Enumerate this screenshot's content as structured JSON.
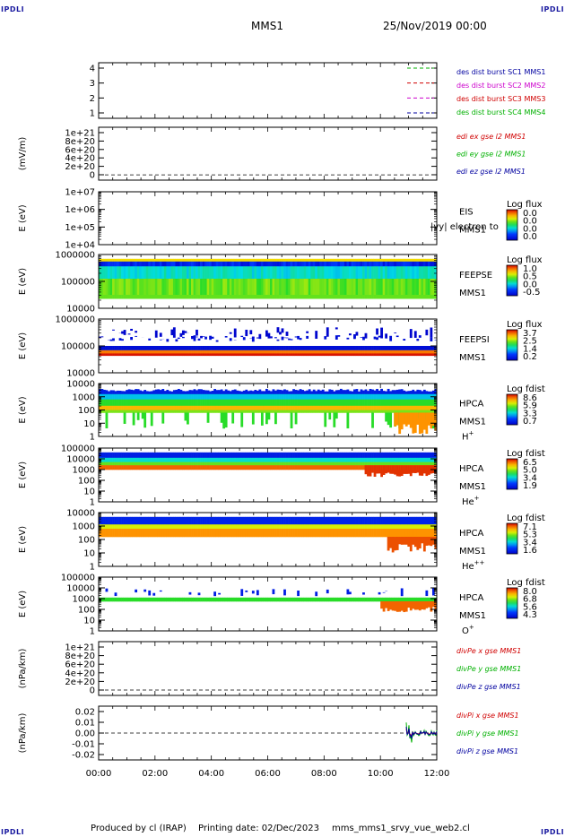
{
  "corner_label": "IPDLI",
  "header": {
    "mission": "MMS1",
    "datetime": "25/Nov/2019 00:00"
  },
  "footer": {
    "produced_by": "Produced by cl (IRAP)",
    "printing_date": "Printing date: 02/Dec/2023",
    "script": "mms_mms1_srvy_vue_web2.cl"
  },
  "time_axis": [
    "00:00",
    "02:00",
    "04:00",
    "06:00",
    "08:00",
    "10:00",
    "12:00"
  ],
  "colors": {
    "mms1": "#0000a0",
    "mms2": "#cc00cc",
    "mms3": "#d00000",
    "mms4": "#00b000",
    "x": "#d00000",
    "y": "#00b000",
    "z": "#0000a0"
  },
  "chart_data": [
    {
      "type": "line",
      "panel": "burst",
      "yticks": [
        "1",
        "2",
        "3",
        "4"
      ],
      "ylim": [
        0.6,
        4.3
      ],
      "series": [
        {
          "name": "des dist burst SC1 MMS1",
          "color": "green",
          "level": 4
        },
        {
          "name": "des dist burst SC2 MMS2",
          "color": "red",
          "level": 3
        },
        {
          "name": "des dist burst SC3 MMS3",
          "color": "magenta",
          "level": 2
        },
        {
          "name": "des dist burst SC4 MMS4",
          "color": "blue",
          "level": 1
        }
      ],
      "legend_colors": [
        "blue",
        "magenta",
        "red",
        "green"
      ]
    },
    {
      "type": "line",
      "panel": "edi",
      "ylabel": "(mV/m)",
      "yticks": [
        "1e+21",
        "8e+20",
        "6e+20",
        "4e+20",
        "2e+20",
        "0"
      ],
      "series": [
        {
          "name": "edi ex gse l2 MMS1",
          "color": "red"
        },
        {
          "name": "edi ey gse l2 MMS1",
          "color": "green"
        },
        {
          "name": "edi ez gse l2 MMS1",
          "color": "blue"
        }
      ]
    },
    {
      "type": "heatmap",
      "panel": "eis",
      "ylabel": "E (eV)",
      "yticks": [
        "1e+07",
        "1e+06",
        "1e+05",
        "1e+04"
      ],
      "instrument": [
        "EIS",
        "MMS1"
      ],
      "overlay": "|vy| electron to",
      "colorbar": {
        "title": "Log flux",
        "ticks": [
          "0.0",
          "0.0",
          "0.0",
          "0.0"
        ]
      }
    },
    {
      "type": "heatmap",
      "panel": "feepse",
      "ylabel": "E (eV)",
      "yticks": [
        "1000000",
        "100000",
        "10000"
      ],
      "instrument": [
        "FEEPSE",
        "MMS1"
      ],
      "colorbar": {
        "title": "Log flux",
        "ticks": [
          "1.0",
          "0.5",
          "0.0",
          "-0.5"
        ]
      }
    },
    {
      "type": "heatmap",
      "panel": "feepsi",
      "ylabel": "E (eV)",
      "yticks": [
        "1000000",
        "100000",
        "10000"
      ],
      "instrument": [
        "FEEPSI",
        "MMS1"
      ],
      "colorbar": {
        "title": "Log flux",
        "ticks": [
          "3.7",
          "2.5",
          "1.4",
          "0.2"
        ]
      }
    },
    {
      "type": "heatmap",
      "panel": "hpca_h",
      "ylabel": "E (eV)",
      "yticks": [
        "10000",
        "1000",
        "100",
        "10",
        "1"
      ],
      "instrument": [
        "HPCA",
        "MMS1"
      ],
      "species": "H",
      "species_sup": "+",
      "colorbar": {
        "title": "Log fdist",
        "ticks": [
          "8.6",
          "5.9",
          "3.3",
          "0.7"
        ]
      }
    },
    {
      "type": "heatmap",
      "panel": "hpca_he",
      "ylabel": "E (eV)",
      "yticks": [
        "100000",
        "10000",
        "1000",
        "100",
        "10",
        "1"
      ],
      "instrument": [
        "HPCA",
        "MMS1"
      ],
      "species": "He",
      "species_sup": "+",
      "colorbar": {
        "title": "Log fdist",
        "ticks": [
          "6.5",
          "5.0",
          "3.4",
          "1.9"
        ]
      }
    },
    {
      "type": "heatmap",
      "panel": "hpca_hepp",
      "ylabel": "E (eV)",
      "yticks": [
        "10000",
        "1000",
        "100",
        "10",
        "1"
      ],
      "instrument": [
        "HPCA",
        "MMS1"
      ],
      "species": "He",
      "species_sup": "++",
      "colorbar": {
        "title": "Log fdist",
        "ticks": [
          "7.1",
          "5.3",
          "3.4",
          "1.6"
        ]
      }
    },
    {
      "type": "heatmap",
      "panel": "hpca_o",
      "ylabel": "E (eV)",
      "yticks": [
        "100000",
        "10000",
        "1000",
        "100",
        "10",
        "1"
      ],
      "instrument": [
        "HPCA",
        "MMS1"
      ],
      "species": "O",
      "species_sup": "+",
      "colorbar": {
        "title": "Log fdist",
        "ticks": [
          "8.0",
          "6.8",
          "5.6",
          "4.3"
        ]
      }
    },
    {
      "type": "line",
      "panel": "divpe",
      "ylabel": "(nPa/km)",
      "yticks": [
        "1e+21",
        "8e+20",
        "6e+20",
        "4e+20",
        "2e+20",
        "0"
      ],
      "series": [
        {
          "name": "divPe x gse MMS1",
          "color": "red"
        },
        {
          "name": "divPe y gse MMS1",
          "color": "green"
        },
        {
          "name": "divPe z gse MMS1",
          "color": "blue"
        }
      ]
    },
    {
      "type": "line",
      "panel": "divpi",
      "ylabel": "(nPa/km)",
      "yticks": [
        "0.02",
        "0.01",
        "0.00",
        "-0.01",
        "-0.02"
      ],
      "ylim": [
        -0.027,
        0.027
      ],
      "series": [
        {
          "name": "divPi x gse MMS1",
          "color": "red"
        },
        {
          "name": "divPi y gse MMS1",
          "color": "green"
        },
        {
          "name": "divPi z gse MMS1",
          "color": "blue"
        }
      ]
    }
  ]
}
